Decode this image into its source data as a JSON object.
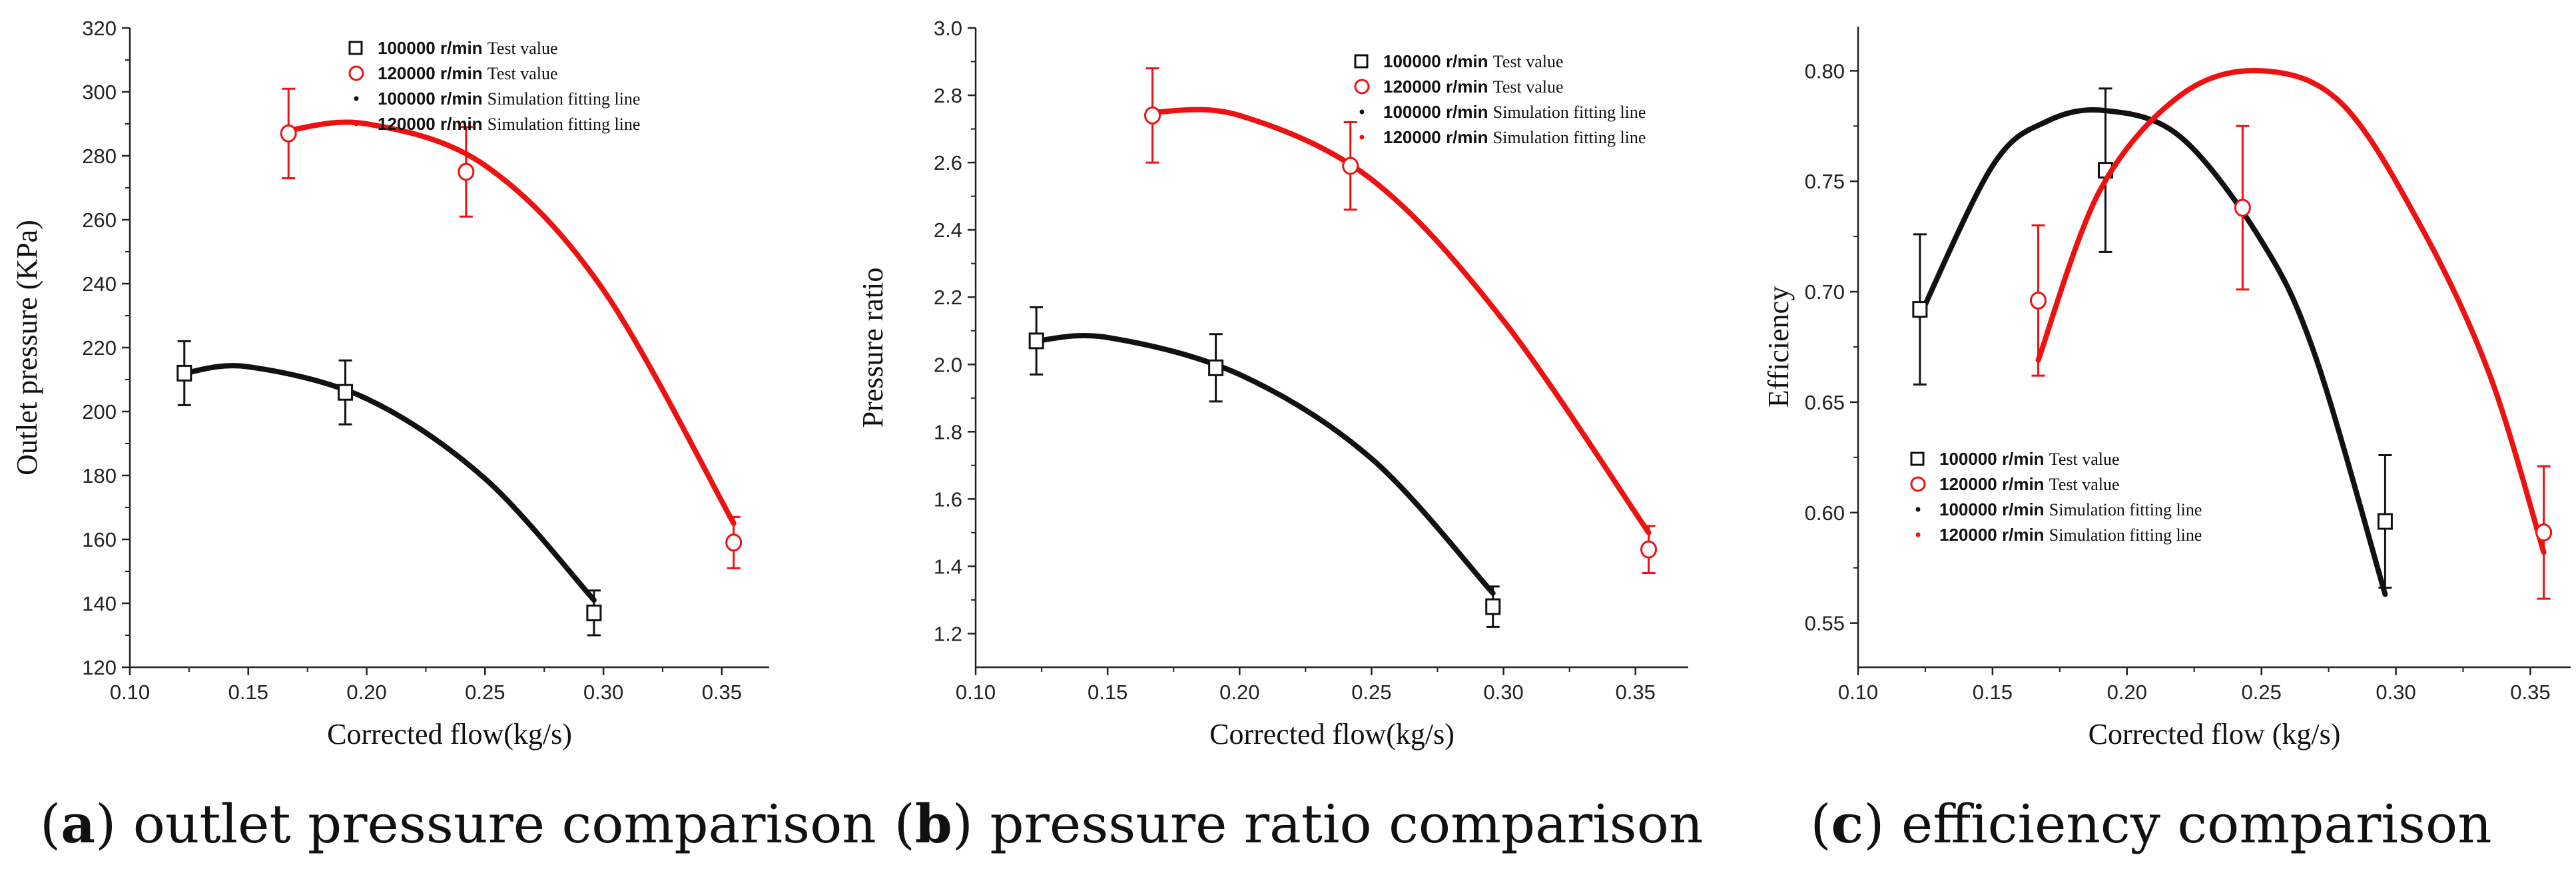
{
  "colors": {
    "black_series": "#111111",
    "red_series": "#ee1111",
    "axis": "#222222"
  },
  "legend_labels": [
    {
      "series": "100000 r/min",
      "desc": "Test value",
      "color": "#111111",
      "marker": "square"
    },
    {
      "series": "120000 r/min",
      "desc": "Test value",
      "color": "#ee1111",
      "marker": "circle"
    },
    {
      "series": "100000 r/min",
      "desc": "Simulation fitting line",
      "color": "#111111",
      "marker": "dot"
    },
    {
      "series": "120000 r/min",
      "desc": "Simulation fitting line",
      "color": "#ee1111",
      "marker": "dot"
    }
  ],
  "captions": [
    {
      "letter": "a",
      "text": "outlet pressure comparison"
    },
    {
      "letter": "b",
      "text": "pressure ratio comparison"
    },
    {
      "letter": "c",
      "text": "efficiency comparison"
    }
  ],
  "chart_data": [
    {
      "type": "scatter",
      "panel": "a",
      "title": "",
      "xlabel": "Corrected flow(kg/s)",
      "ylabel": "Outlet pressure (KPa)",
      "xlim": [
        0.1,
        0.37
      ],
      "ylim": [
        120,
        320
      ],
      "xticks": [
        "0.10",
        "0.15",
        "0.20",
        "0.25",
        "0.30",
        "0.35"
      ],
      "xtick_values": [
        0.1,
        0.15,
        0.2,
        0.25,
        0.3,
        0.35
      ],
      "yticks": [
        "120",
        "140",
        "160",
        "180",
        "200",
        "220",
        "240",
        "260",
        "280",
        "300",
        "320"
      ],
      "ytick_values": [
        120,
        140,
        160,
        180,
        200,
        220,
        240,
        260,
        280,
        300,
        320
      ],
      "legend_position": "top-right",
      "series": [
        {
          "name": "100000 r/min Test value",
          "color": "#111111",
          "marker": "square",
          "x": [
            0.123,
            0.191,
            0.296
          ],
          "y": [
            212,
            206,
            137
          ],
          "err": [
            10,
            10,
            7
          ],
          "fit_x": [
            0.123,
            0.15,
            0.2,
            0.25,
            0.296
          ],
          "fit_y": [
            212,
            214,
            204,
            179,
            141
          ]
        },
        {
          "name": "120000 r/min Test value",
          "color": "#ee1111",
          "marker": "circle",
          "x": [
            0.167,
            0.242,
            0.355
          ],
          "y": [
            287,
            275,
            159
          ],
          "err": [
            14,
            14,
            8
          ],
          "fit_x": [
            0.167,
            0.2,
            0.25,
            0.3,
            0.355
          ],
          "fit_y": [
            288,
            290,
            277,
            238,
            165
          ]
        }
      ]
    },
    {
      "type": "scatter",
      "panel": "b",
      "title": "",
      "xlabel": "Corrected flow(kg/s)",
      "ylabel": "Pressure ratio",
      "xlim": [
        0.1,
        0.37
      ],
      "ylim": [
        1.1,
        3.0
      ],
      "xticks": [
        "0.10",
        "0.15",
        "0.20",
        "0.25",
        "0.30",
        "0.35"
      ],
      "xtick_values": [
        0.1,
        0.15,
        0.2,
        0.25,
        0.3,
        0.35
      ],
      "yticks": [
        "1.2",
        "1.4",
        "1.6",
        "1.8",
        "2.0",
        "2.2",
        "2.4",
        "2.6",
        "2.8",
        "3.0"
      ],
      "ytick_values": [
        1.2,
        1.4,
        1.6,
        1.8,
        2.0,
        2.2,
        2.4,
        2.6,
        2.8,
        3.0
      ],
      "legend_position": "top-right",
      "series": [
        {
          "name": "100000 r/min Test value",
          "color": "#111111",
          "marker": "square",
          "x": [
            0.123,
            0.191,
            0.296
          ],
          "y": [
            2.07,
            1.99,
            1.28
          ],
          "err": [
            0.1,
            0.1,
            0.06
          ],
          "fit_x": [
            0.123,
            0.15,
            0.2,
            0.25,
            0.296
          ],
          "fit_y": [
            2.07,
            2.08,
            1.97,
            1.72,
            1.32
          ]
        },
        {
          "name": "120000 r/min Test value",
          "color": "#ee1111",
          "marker": "circle",
          "x": [
            0.167,
            0.242,
            0.355
          ],
          "y": [
            2.74,
            2.59,
            1.45
          ],
          "err": [
            0.14,
            0.13,
            0.07
          ],
          "fit_x": [
            0.167,
            0.2,
            0.25,
            0.3,
            0.355
          ],
          "fit_y": [
            2.75,
            2.74,
            2.55,
            2.13,
            1.5
          ]
        }
      ]
    },
    {
      "type": "scatter",
      "panel": "c",
      "title": "",
      "xlabel": "Corrected flow (kg/s)",
      "ylabel": "Efficiency",
      "xlim": [
        0.1,
        0.365
      ],
      "ylim": [
        0.53,
        0.82
      ],
      "xticks": [
        "0.10",
        "0.15",
        "0.20",
        "0.25",
        "0.30",
        "0.35"
      ],
      "xtick_values": [
        0.1,
        0.15,
        0.2,
        0.25,
        0.3,
        0.35
      ],
      "yticks": [
        "0.55",
        "0.60",
        "0.65",
        "0.70",
        "0.75",
        "0.80"
      ],
      "ytick_values": [
        0.55,
        0.6,
        0.65,
        0.7,
        0.75,
        0.8
      ],
      "legend_position": "bottom-left",
      "series": [
        {
          "name": "100000 r/min Test value",
          "color": "#111111",
          "marker": "square",
          "x": [
            0.123,
            0.192,
            0.296
          ],
          "y": [
            0.692,
            0.755,
            0.596
          ],
          "err": [
            0.034,
            0.037,
            0.03
          ],
          "fit_x": [
            0.123,
            0.15,
            0.17,
            0.192,
            0.22,
            0.25,
            0.27,
            0.296
          ],
          "fit_y": [
            0.689,
            0.757,
            0.777,
            0.782,
            0.77,
            0.723,
            0.671,
            0.563
          ],
          "fit_color": "#111111"
        },
        {
          "name": "120000 r/min Test value",
          "color": "#ee1111",
          "marker": "circle",
          "x": [
            0.167,
            0.243,
            0.355
          ],
          "y": [
            0.696,
            0.738,
            0.591
          ],
          "err": [
            0.034,
            0.037,
            0.03
          ],
          "fit_x": [
            0.167,
            0.19,
            0.22,
            0.25,
            0.28,
            0.31,
            0.335,
            0.355
          ],
          "fit_y": [
            0.669,
            0.746,
            0.789,
            0.8,
            0.785,
            0.728,
            0.662,
            0.582
          ],
          "fit_color": "#ee1111"
        }
      ]
    }
  ]
}
